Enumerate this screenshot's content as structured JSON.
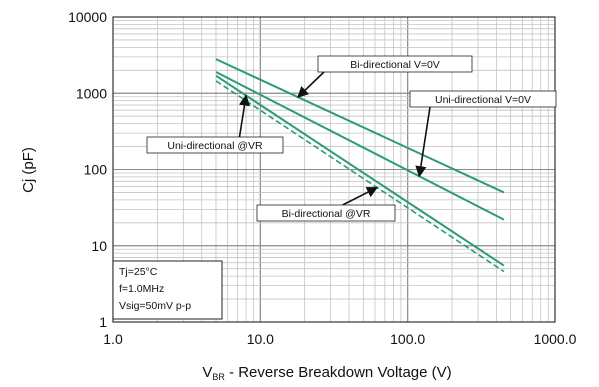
{
  "chart_data": {
    "type": "line",
    "x_scale": "log",
    "y_scale": "log",
    "xlim": [
      1,
      1000
    ],
    "ylim": [
      1,
      10000
    ],
    "x_ticks": [
      "1.0",
      "10.0",
      "100.0",
      "1000.0"
    ],
    "y_ticks": [
      "1",
      "10",
      "100",
      "1000",
      "10000"
    ],
    "xlabel_main": "V",
    "xlabel_sub": "BR",
    "xlabel_rest": " - Reverse Breakdown Voltage (V)",
    "ylabel": "Cj (pF)",
    "grid": true,
    "series": [
      {
        "name": "Bi-directional V=0V",
        "style": "solid",
        "x": [
          5,
          450
        ],
        "y": [
          2800,
          50
        ]
      },
      {
        "name": "Uni-directional V=0V",
        "style": "solid",
        "x": [
          5,
          450
        ],
        "y": [
          1900,
          22
        ]
      },
      {
        "name": "Uni-directional @VR",
        "style": "solid",
        "x": [
          5,
          450
        ],
        "y": [
          1700,
          5.5
        ]
      },
      {
        "name": "Bi-directional @VR",
        "style": "dashed",
        "x": [
          5,
          450
        ],
        "y": [
          1450,
          4.6
        ]
      }
    ],
    "annotations": [
      {
        "text": "Bi-directional V=0V",
        "series": 0
      },
      {
        "text": "Uni-directional V=0V",
        "series": 1
      },
      {
        "text": "Uni-directional @VR",
        "series": 2
      },
      {
        "text": "Bi-directional @VR",
        "series": 3
      }
    ],
    "conditions": [
      "Tj=25°C",
      "f=1.0MHz",
      "Vsig=50mV p-p"
    ],
    "colors": {
      "series": "#2e9a78",
      "axis": "#333333",
      "grid_major": "#8a8a8a",
      "grid_minor": "#c4c4c4"
    }
  }
}
